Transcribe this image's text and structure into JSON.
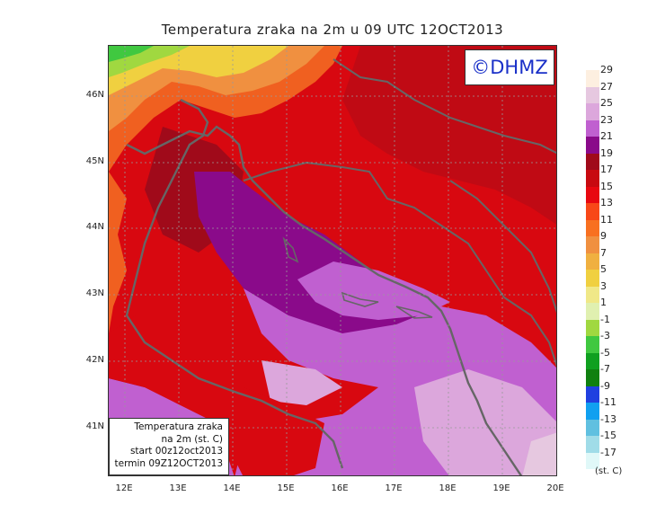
{
  "title": "Temperatura zraka na 2m u 09 UTC 12OCT2013",
  "logo_text": "©DHMZ",
  "info_box": [
    "Temperatura zraka",
    "na 2m (st. C)",
    "start 00z12oct2013",
    "termin 09Z12OCT2013"
  ],
  "lat_labels": [
    "46N",
    "45N",
    "44N",
    "43N",
    "42N",
    "41N"
  ],
  "lon_labels": [
    "12E",
    "13E",
    "14E",
    "15E",
    "16E",
    "17E",
    "18E",
    "19E",
    "20E"
  ],
  "colorbar": {
    "labels": [
      "29",
      "27",
      "25",
      "23",
      "21",
      "19",
      "17",
      "15",
      "13",
      "11",
      "9",
      "7",
      "5",
      "3",
      "1",
      "-1",
      "-3",
      "-5",
      "-7",
      "-9",
      "-11",
      "-13",
      "-15",
      "-17"
    ],
    "colors": [
      "#fdefe0",
      "#e6c8e0",
      "#dca7dc",
      "#c060d0",
      "#8a0a8a",
      "#a00a1a",
      "#c80a10",
      "#e80810",
      "#f84818",
      "#f87020",
      "#f09040",
      "#f0b040",
      "#f0d040",
      "#f0e888",
      "#e0f0b0",
      "#a0d840",
      "#40c840",
      "#10a020",
      "#108010",
      "#2040e0",
      "#10a0f0",
      "#60c0e0",
      "#a0dce8",
      "#e0f8f8"
    ],
    "unit": "(st. C)"
  },
  "colors": {
    "coast": "#666666",
    "grid": "#999999"
  }
}
